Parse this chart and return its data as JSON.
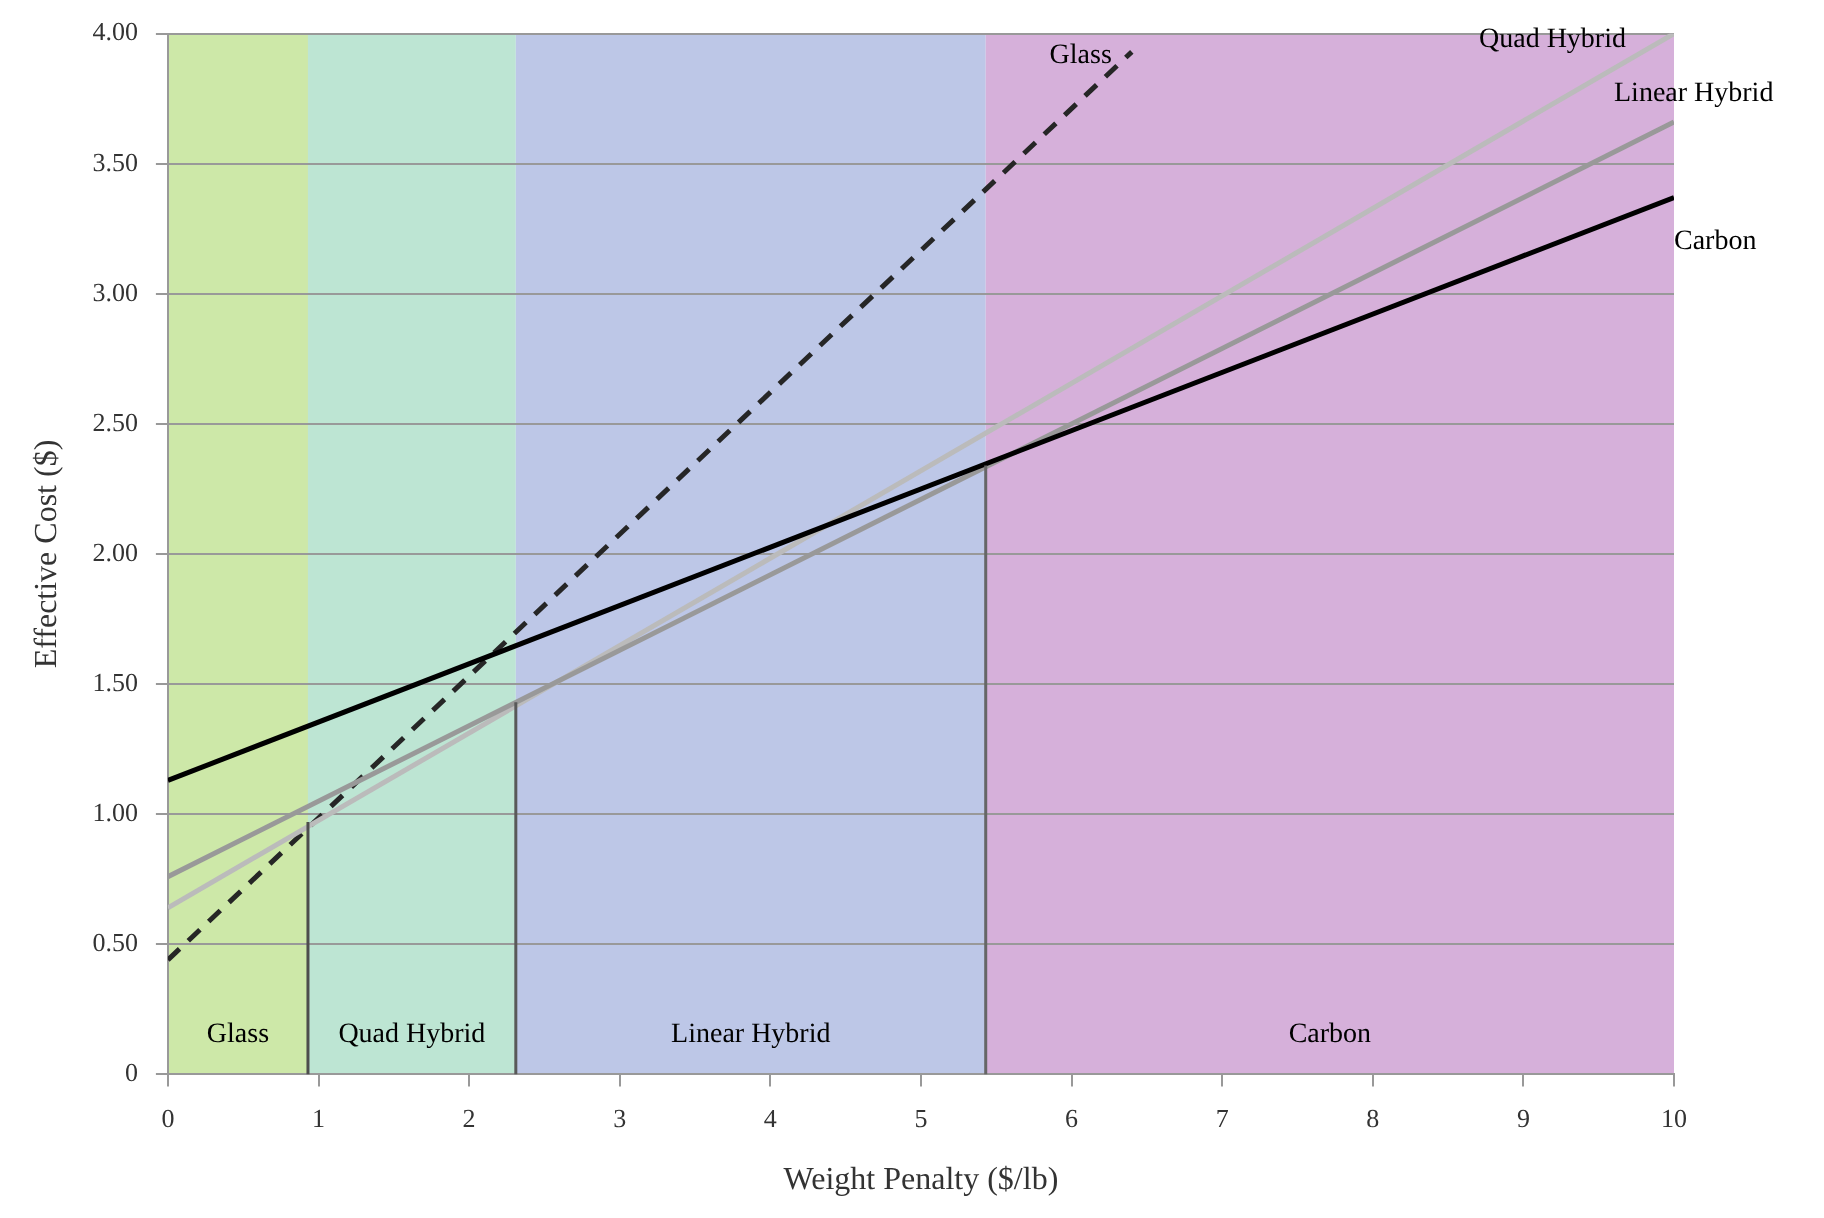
{
  "chart_data": {
    "type": "line",
    "xlabel": "Weight Penalty ($/lb)",
    "ylabel": "Effective Cost ($)",
    "xlim": [
      0,
      10
    ],
    "xticks": [
      0,
      1,
      2,
      3,
      4,
      5,
      6,
      7,
      8,
      9,
      10
    ],
    "ylim": [
      0,
      4
    ],
    "yticks": [
      0,
      {
        "value": 0.5,
        "label": "0.50"
      },
      {
        "value": 1,
        "label": "1.00"
      },
      {
        "value": 1.5,
        "label": "1.50"
      },
      {
        "value": 2,
        "label": "2.00"
      },
      {
        "value": 2.5,
        "label": "2.50"
      },
      {
        "value": 3,
        "label": "3.00"
      },
      {
        "value": 3.5,
        "label": "3.50"
      },
      {
        "value": 4,
        "label": "4.00"
      }
    ],
    "grid": "y",
    "legend": false,
    "marker": "none",
    "series": [
      {
        "name": "Glass",
        "color": "#262626",
        "x": [
          0,
          6.4
        ],
        "values": [
          0.44,
          3.93
        ],
        "line_style": "dashed"
      },
      {
        "name": "Quad Hybrid",
        "color": "#bbbbbb",
        "x": [
          0,
          10
        ],
        "values": [
          0.64,
          4.0
        ]
      },
      {
        "name": "Linear Hybrid",
        "color": "#999999",
        "x": [
          0,
          10
        ],
        "values": [
          0.76,
          3.66
        ]
      },
      {
        "name": "Carbon",
        "color": "#000000",
        "x": [
          0,
          10
        ],
        "values": [
          1.13,
          3.37
        ]
      },
      {
        "color": "#4d4d4d",
        "x": [
          0.93,
          0.93
        ],
        "values": [
          0,
          0.97
        ]
      },
      {
        "color": "#595959",
        "x": [
          2.31,
          2.31
        ],
        "values": [
          0,
          1.43
        ]
      },
      {
        "color": "#666666",
        "x": [
          5.43,
          5.43
        ],
        "values": [
          0,
          2.34
        ]
      }
    ],
    "bands": [
      {
        "axis": "x",
        "from": 0,
        "to": 0.93,
        "label": "Glass",
        "color": "#cde8a8"
      },
      {
        "axis": "x",
        "from": 0.93,
        "to": 2.31,
        "label": "Quad Hybrid",
        "color": "#bde5d3"
      },
      {
        "axis": "x",
        "from": 2.31,
        "to": 5.43,
        "label": "Linear Hybrid",
        "color": "#bdc7e7"
      },
      {
        "axis": "x",
        "from": 5.43,
        "to": 10,
        "label": "Carbon",
        "color": "#d6b0da"
      }
    ]
  }
}
